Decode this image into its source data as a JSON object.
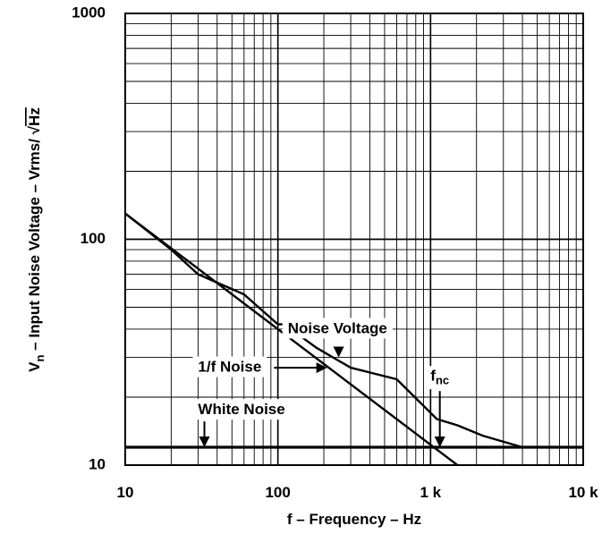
{
  "chart_data": {
    "type": "line",
    "xscale": "log",
    "yscale": "log",
    "xlim": [
      10,
      10000
    ],
    "ylim": [
      10,
      1000
    ],
    "grid": true,
    "xlabel": "f – Frequency – Hz",
    "ylabel": {
      "sym": "V",
      "sub": "n",
      "rest": " – Input Noise Voltage – Vrms/ ",
      "sqrt_sym": "√",
      "hz": "Hz"
    },
    "xtick_labels": [
      {
        "value": 10,
        "label": "10"
      },
      {
        "value": 100,
        "label": "100"
      },
      {
        "value": 1000,
        "label": "1 k"
      },
      {
        "value": 10000,
        "label": "10 k"
      }
    ],
    "ytick_labels": [
      {
        "value": 10,
        "label": "10"
      },
      {
        "value": 100,
        "label": "100"
      },
      {
        "value": 1000,
        "label": "1000"
      }
    ],
    "series": [
      {
        "name": "Noise Voltage",
        "x": [
          10,
          20,
          30,
          60,
          100,
          110,
          180,
          300,
          600,
          1100,
          1500,
          2200,
          4000
        ],
        "y": [
          130,
          90,
          70,
          57,
          42,
          42,
          33,
          27,
          24,
          16,
          15,
          13.5,
          12
        ]
      },
      {
        "name": "1/f Noise",
        "x": [
          10,
          1500
        ],
        "y": [
          130,
          10
        ]
      },
      {
        "name": "White Noise",
        "x": [
          10,
          10000
        ],
        "y": [
          12,
          12
        ]
      }
    ],
    "annotations": [
      {
        "id": "noise-voltage",
        "text": "Noise Voltage",
        "x": 520,
        "y": 40,
        "arrow_x": 250,
        "arrow_y": 30
      },
      {
        "id": "one-over-f",
        "text": "1/f Noise",
        "x": 30,
        "y": 27,
        "arrow_x": 210,
        "arrow_y": 27
      },
      {
        "id": "white-noise",
        "text": "White Noise",
        "x": 30,
        "y": 17.5,
        "arrow_x": 33,
        "arrow_y": 12
      },
      {
        "id": "fnc",
        "sym": "f",
        "sub": "nc",
        "x": 1150,
        "y": 24.5,
        "arrow_x": 1150,
        "arrow_y": 12
      }
    ]
  }
}
